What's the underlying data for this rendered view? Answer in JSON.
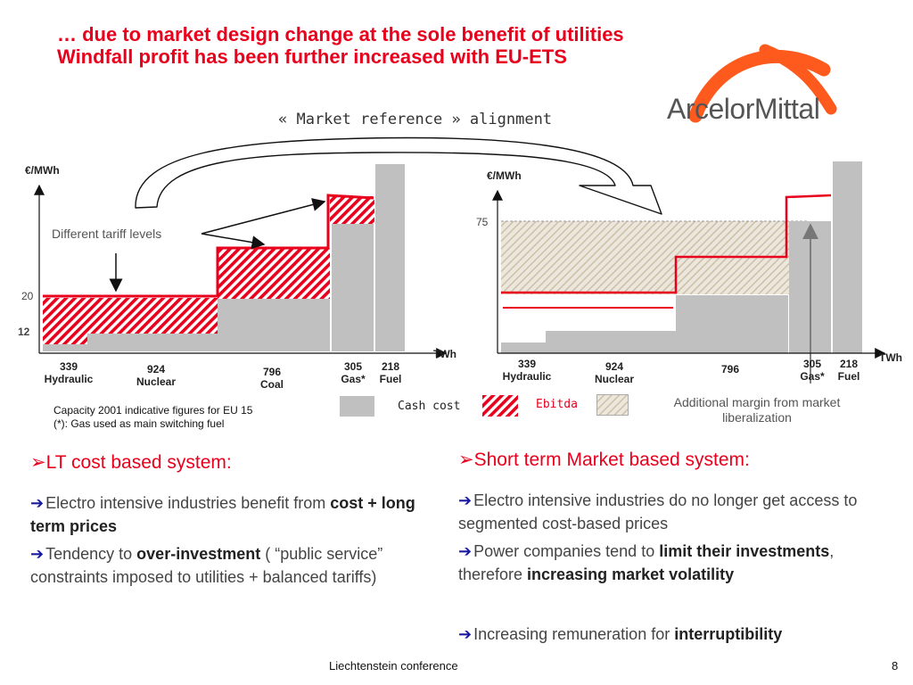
{
  "slide": {
    "title": "… due to market design change at the sole benefit of utilities Windfall profit has been further increased with EU-ETS",
    "subtitle": "« Market reference » alignment",
    "logo_text": "ArcelorMittal",
    "brand_color": "#e8001c"
  },
  "left_chart": {
    "ylabel": "€/MWh",
    "xlabel": "TWh",
    "y_ticks": [
      "20",
      "12"
    ],
    "annotation": "Different tariff levels",
    "categories": [
      {
        "value": "339",
        "name": "Hydraulic"
      },
      {
        "value": "924",
        "name": "Nuclear"
      },
      {
        "value": "796",
        "name": "Coal"
      },
      {
        "value": "305",
        "name": "Gas*"
      },
      {
        "value": "218",
        "name": "Fuel"
      }
    ]
  },
  "right_chart": {
    "ylabel": "€/MWh",
    "xlabel": "TWh",
    "y_tick": "75",
    "categories": [
      {
        "value": "339",
        "name": "Hydraulic"
      },
      {
        "value": "924",
        "name": "Nuclear"
      },
      {
        "value": "796",
        "name": ""
      },
      {
        "value": "305",
        "name": "Gas*"
      },
      {
        "value": "218",
        "name": "Fuel"
      }
    ]
  },
  "notes": {
    "line1": "Capacity 2001 indicative figures for EU 15",
    "line2": "(*): Gas used as main switching fuel"
  },
  "legend": {
    "cash_cost": "Cash cost",
    "ebitda": "Ebitda",
    "additional_margin": "Additional margin from market liberalization",
    "colors": {
      "cash_cost": "#c0c0c0",
      "ebitda": "#e8001c",
      "additional": "#e6e0d2"
    }
  },
  "left_section": {
    "heading": "LT cost based  system:",
    "bullets": [
      {
        "text": "Electro intensive industries benefit from ",
        "bold": "cost + long term prices",
        "rest": ""
      },
      {
        "text": "Tendency to ",
        "bold": "over-investment",
        "rest": " ( “public service” constraints imposed to utilities + balanced tariffs)"
      }
    ]
  },
  "right_section": {
    "heading": "Short term Market based system:",
    "bullet1": "Electro intensive industries do no longer get access to segmented cost-based prices",
    "bullet2_a": "Power companies tend to ",
    "bullet2_b": "limit their investments",
    "bullet2_c": ", therefore ",
    "bullet2_d": "increasing market volatility",
    "bullet3_a": "Increasing remuneration for ",
    "bullet3_b": "interruptibility"
  },
  "footer": {
    "conference": "Liechtenstein conference",
    "page": "8"
  }
}
